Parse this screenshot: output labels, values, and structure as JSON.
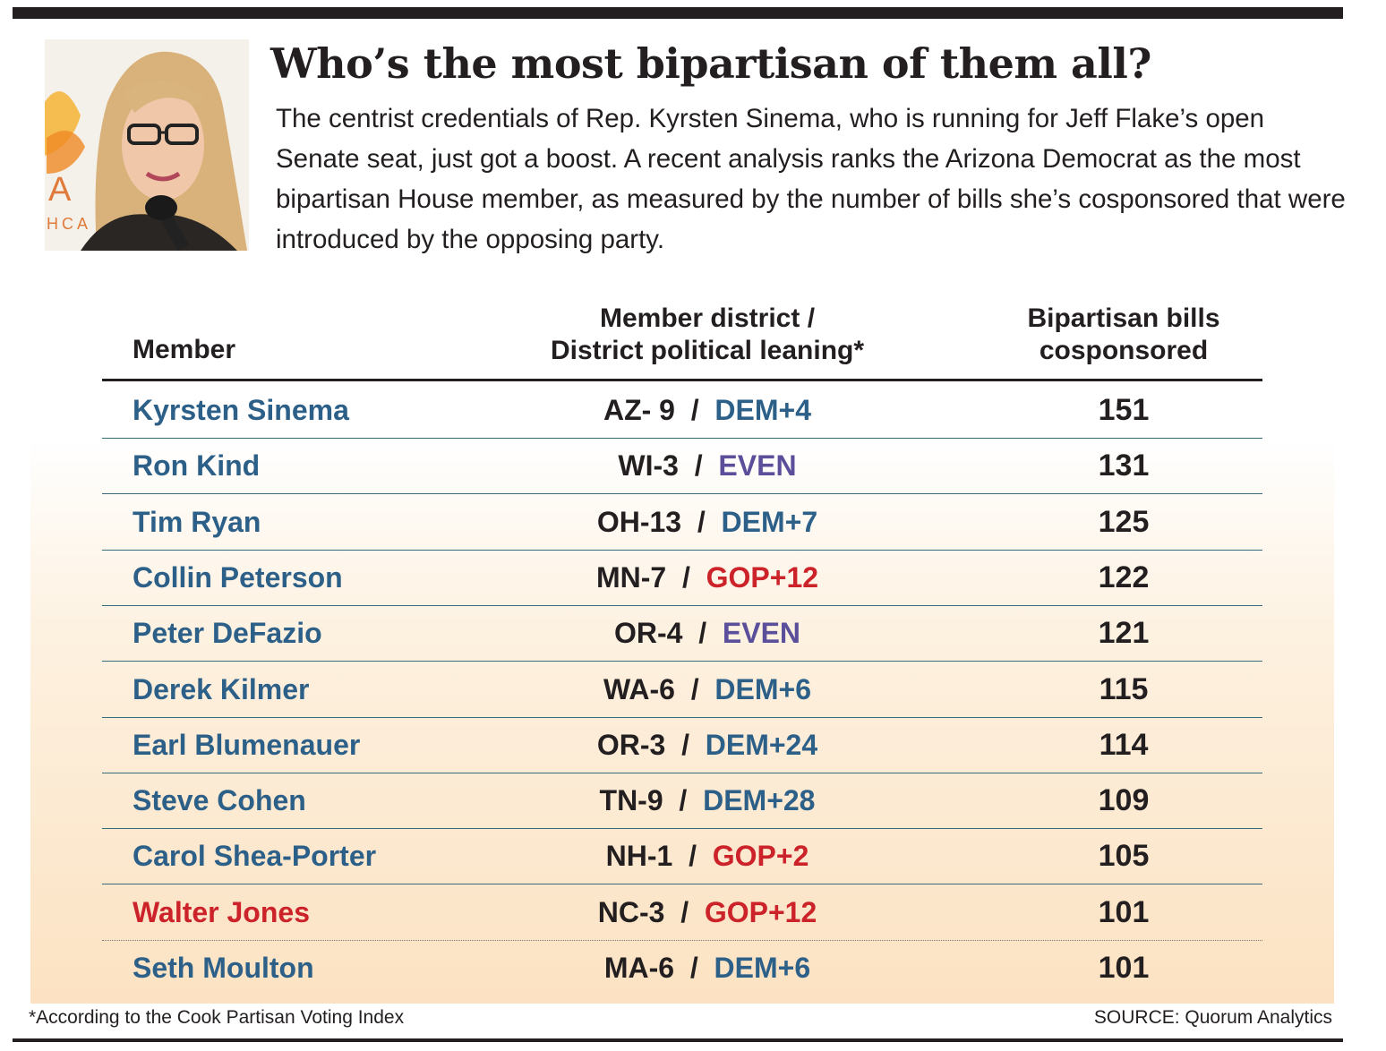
{
  "title": "Who’s the most bipartisan of them all?",
  "intro": "The centrist credentials of Rep. Kyrsten Sinema, who is running for Jeff Flake’s open Senate seat, just got a boost. A recent analysis ranks the Arizona Democrat as the most bipartisan House member, as measured by the number of bills she’s cosponsored that were introduced by the opposing party.",
  "photo_backdrop": {
    "letter": "A",
    "caption": "HCA"
  },
  "colors": {
    "dem": "#2d6088",
    "gop": "#cc2229",
    "even": "#5b4f9b",
    "text": "#231f20"
  },
  "chart_data": {
    "type": "table",
    "columns": {
      "member": "Member",
      "district_line1": "Member district /",
      "district_line2": "District political leaning*",
      "bills_line1": "Bipartisan bills",
      "bills_line2": "cosponsored"
    },
    "rows": [
      {
        "member": "Kyrsten Sinema",
        "party": "dem",
        "district": "AZ- 9",
        "leaning": "DEM+4",
        "leaning_party": "dem",
        "bills": 151
      },
      {
        "member": "Ron Kind",
        "party": "dem",
        "district": "WI-3",
        "leaning": "EVEN",
        "leaning_party": "even",
        "bills": 131
      },
      {
        "member": "Tim Ryan",
        "party": "dem",
        "district": "OH-13",
        "leaning": "DEM+7",
        "leaning_party": "dem",
        "bills": 125
      },
      {
        "member": "Collin Peterson",
        "party": "dem",
        "district": "MN-7",
        "leaning": "GOP+12",
        "leaning_party": "gop",
        "bills": 122
      },
      {
        "member": "Peter DeFazio",
        "party": "dem",
        "district": "OR-4",
        "leaning": "EVEN",
        "leaning_party": "even",
        "bills": 121
      },
      {
        "member": "Derek Kilmer",
        "party": "dem",
        "district": "WA-6",
        "leaning": "DEM+6",
        "leaning_party": "dem",
        "bills": 115
      },
      {
        "member": "Earl Blumenauer",
        "party": "dem",
        "district": "OR-3",
        "leaning": "DEM+24",
        "leaning_party": "dem",
        "bills": 114
      },
      {
        "member": "Steve Cohen",
        "party": "dem",
        "district": "TN-9",
        "leaning": "DEM+28",
        "leaning_party": "dem",
        "bills": 109
      },
      {
        "member": "Carol Shea-Porter",
        "party": "dem",
        "district": "NH-1",
        "leaning": "GOP+2",
        "leaning_party": "gop",
        "bills": 105
      },
      {
        "member": "Walter Jones",
        "party": "gop",
        "district": "NC-3",
        "leaning": "GOP+12",
        "leaning_party": "gop",
        "bills": 101
      },
      {
        "member": "Seth Moulton",
        "party": "dem",
        "district": "MA-6",
        "leaning": "DEM+6",
        "leaning_party": "dem",
        "bills": 101
      }
    ]
  },
  "footnote": "*According to the Cook Partisan Voting Index",
  "source": "SOURCE: Quorum Analytics"
}
